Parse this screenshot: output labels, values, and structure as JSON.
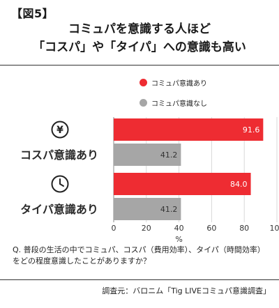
{
  "figure_tag": "【図5】",
  "title_line1": "コミュパを意識する人ほど",
  "title_line2": "「コスパ」や「タイパ」への意識も高い",
  "legend": [
    {
      "label": "コミュパ意識あり",
      "color": "#ee2c32"
    },
    {
      "label": "コミュパ意識なし",
      "color": "#a6a6a6"
    }
  ],
  "categories": [
    {
      "label": "コスパ意識あり",
      "icon": "yen-coin-icon"
    },
    {
      "label": "タイパ意識あり",
      "icon": "clock-icon"
    }
  ],
  "chart_data": {
    "type": "bar",
    "orientation": "horizontal",
    "categories": [
      "コスパ意識あり",
      "タイパ意識あり"
    ],
    "series": [
      {
        "name": "コミュパ意識あり",
        "values": [
          91.6,
          84.0
        ],
        "value_labels": [
          "91.6",
          "84.0"
        ],
        "color": "#ee2c32"
      },
      {
        "name": "コミュパ意識なし",
        "values": [
          41.2,
          41.2
        ],
        "value_labels": [
          "41.2",
          "41.2"
        ],
        "color": "#a6a6a6"
      }
    ],
    "xlim": [
      0,
      100
    ],
    "xticks": [
      0,
      20,
      40,
      60,
      80,
      100
    ],
    "xlabel": "%",
    "grid": true,
    "legend_position": "top-right"
  },
  "question": "Q. 普段の生活の中でコミュパ、コスパ（費用効率）、タイパ（時間効率）をどの程度意識したことがありますか？",
  "source": "調査元：バロニム「Tig LIVEコミュパ意識調査」"
}
